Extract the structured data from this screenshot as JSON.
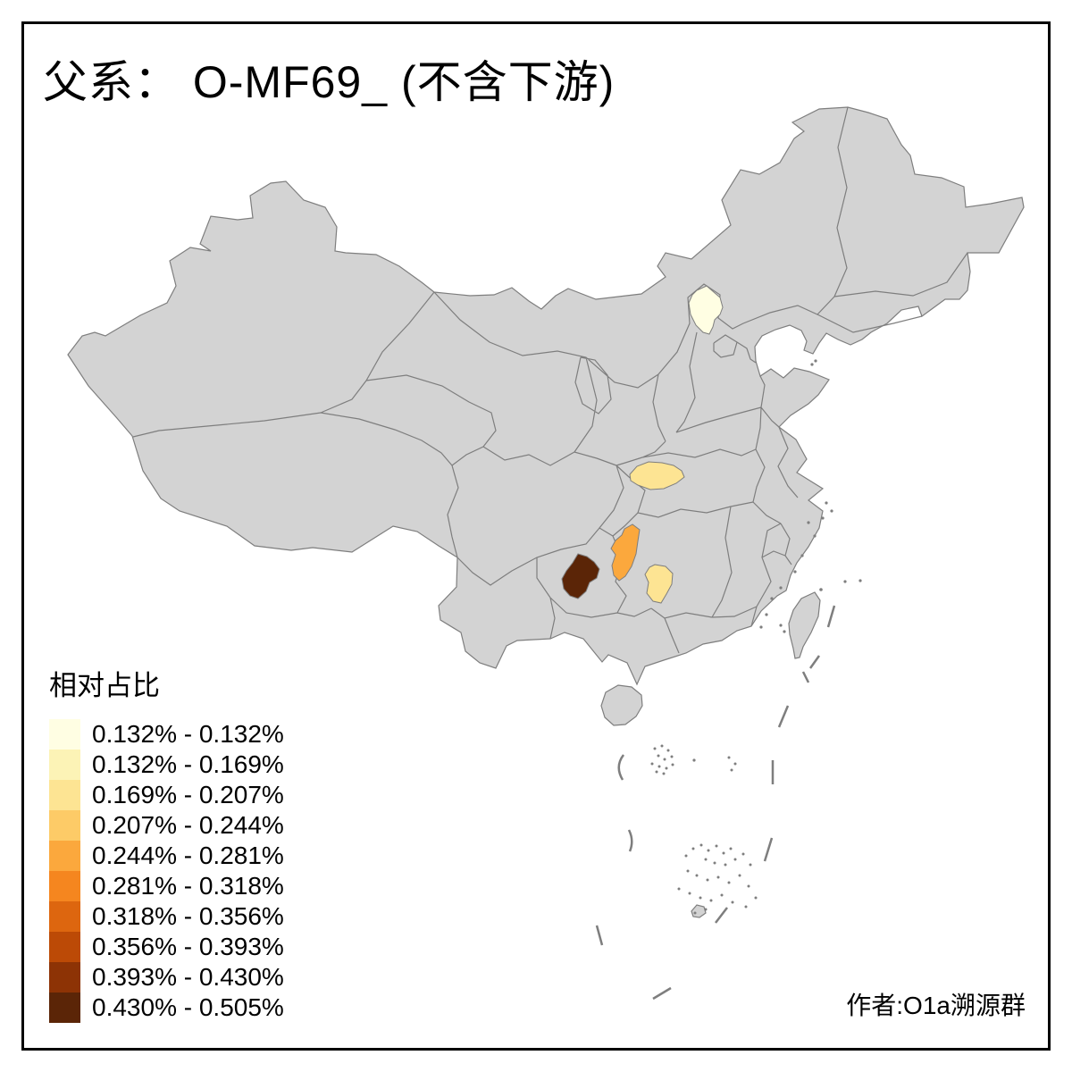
{
  "title": {
    "text": "父系： O-MF69_ (不含下游)"
  },
  "legend": {
    "title": "相对占比",
    "items": [
      {
        "label": "0.132% - 0.132%",
        "color": "#FFFEE3"
      },
      {
        "label": "0.132% - 0.169%",
        "color": "#FCF3B6"
      },
      {
        "label": "0.169% - 0.207%",
        "color": "#FDE493"
      },
      {
        "label": "0.207% - 0.244%",
        "color": "#FDCB67"
      },
      {
        "label": "0.244% - 0.281%",
        "color": "#FBA83D"
      },
      {
        "label": "0.281% - 0.318%",
        "color": "#F5861F"
      },
      {
        "label": "0.318% - 0.356%",
        "color": "#DD660F"
      },
      {
        "label": "0.356% - 0.393%",
        "color": "#BC4A06"
      },
      {
        "label": "0.393% - 0.430%",
        "color": "#8D3305"
      },
      {
        "label": "0.430% - 0.505%",
        "color": "#5B2507"
      }
    ]
  },
  "credit": {
    "text": "作者:O1a溯源群"
  },
  "map": {
    "base_fill": "#D3D3D3",
    "boundary_color": "#7E7E7E",
    "sea_color": "#FFFFFF",
    "frame_color": "#000000",
    "regions": [
      {
        "id": "region-north-hebei",
        "class_index": 0,
        "color": "#FFFEE3",
        "range": "0.132% - 0.132%"
      },
      {
        "id": "region-nw-hubei",
        "class_index": 2,
        "color": "#FDE493",
        "range": "0.169% - 0.207%"
      },
      {
        "id": "region-w-hunan",
        "class_index": 4,
        "color": "#FBA83D",
        "range": "0.244% - 0.281%"
      },
      {
        "id": "region-n-guizhou",
        "class_index": 9,
        "color": "#5B2507",
        "range": "0.430% - 0.505%"
      },
      {
        "id": "region-sw-hunan",
        "class_index": 2,
        "color": "#FDE493",
        "range": "0.169% - 0.207%"
      }
    ]
  },
  "chart_data": {
    "type": "choropleth_map",
    "title": "父系： O-MF69_ (不含下游)",
    "legend_title": "相对占比",
    "legend_position": "bottom-left",
    "base_region": "China (province boundaries, gray = no highlighted value)",
    "classes": [
      {
        "range": "0.132% - 0.132%",
        "color": "#FFFEE3"
      },
      {
        "range": "0.132% - 0.169%",
        "color": "#FCF3B6"
      },
      {
        "range": "0.169% - 0.207%",
        "color": "#FDE493"
      },
      {
        "range": "0.207% - 0.244%",
        "color": "#FDCB67"
      },
      {
        "range": "0.244% - 0.281%",
        "color": "#FBA83D"
      },
      {
        "range": "0.281% - 0.318%",
        "color": "#F5861F"
      },
      {
        "range": "0.318% - 0.356%",
        "color": "#DD660F"
      },
      {
        "range": "0.356% - 0.393%",
        "color": "#BC4A06"
      },
      {
        "range": "0.393% - 0.430%",
        "color": "#8D3305"
      },
      {
        "range": "0.430% - 0.505%",
        "color": "#5B2507"
      }
    ],
    "highlighted_regions": [
      {
        "approx_location": "northern Hebei prefecture (Chengde area)",
        "value_range": "0.132% - 0.132%"
      },
      {
        "approx_location": "northwest Hubei prefecture",
        "value_range": "0.169% - 0.207%"
      },
      {
        "approx_location": "western Hunan prefecture (Xiangxi area)",
        "value_range": "0.244% - 0.281%"
      },
      {
        "approx_location": "northern Guizhou prefecture (Zunyi area)",
        "value_range": "0.430% - 0.505%"
      },
      {
        "approx_location": "southwestern Hunan prefecture",
        "value_range": "0.169% - 0.207%"
      }
    ],
    "annotations": [
      "作者:O1a溯源群"
    ]
  }
}
